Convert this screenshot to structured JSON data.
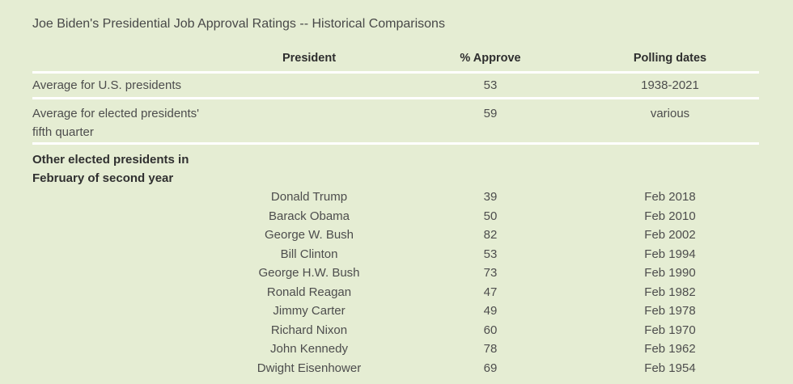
{
  "title": "Joe Biden's Presidential Job Approval Ratings -- Historical Comparisons",
  "colors": {
    "background": "#e5edd3",
    "separator": "#ffffff",
    "body_text": "#4d4d4d",
    "heading_text": "#2e2e2e"
  },
  "table": {
    "headers": {
      "president": "President",
      "approve": "% Approve",
      "dates": "Polling dates"
    },
    "summary_rows": [
      {
        "label": "Average for U.S. presidents",
        "approve": "53",
        "dates": "1938-2021"
      },
      {
        "label": "Average for elected presidents'\nfifth quarter",
        "approve": "59",
        "dates": "various"
      }
    ],
    "group_header": "Other elected presidents in\nFebruary of second year",
    "rows": [
      {
        "president": "Donald Trump",
        "approve": "39",
        "dates": "Feb 2018"
      },
      {
        "president": "Barack Obama",
        "approve": "50",
        "dates": "Feb 2010"
      },
      {
        "president": "George W. Bush",
        "approve": "82",
        "dates": "Feb 2002"
      },
      {
        "president": "Bill Clinton",
        "approve": "53",
        "dates": "Feb 1994"
      },
      {
        "president": "George H.W. Bush",
        "approve": "73",
        "dates": "Feb 1990"
      },
      {
        "president": "Ronald Reagan",
        "approve": "47",
        "dates": "Feb 1982"
      },
      {
        "president": "Jimmy Carter",
        "approve": "49",
        "dates": "Feb 1978"
      },
      {
        "president": "Richard Nixon",
        "approve": "60",
        "dates": "Feb 1970"
      },
      {
        "president": "John Kennedy",
        "approve": "78",
        "dates": "Feb 1962"
      },
      {
        "president": "Dwight Eisenhower",
        "approve": "69",
        "dates": "Feb 1954"
      }
    ]
  },
  "chart_data": {
    "type": "table",
    "title": "Joe Biden's Presidential Job Approval Ratings -- Historical Comparisons",
    "columns": [
      "President",
      "% Approve",
      "Polling dates"
    ],
    "summary": [
      {
        "label": "Average for U.S. presidents",
        "approve": 53,
        "polling_dates": "1938-2021"
      },
      {
        "label": "Average for elected presidents' fifth quarter",
        "approve": 59,
        "polling_dates": "various"
      }
    ],
    "group": "Other elected presidents in February of second year",
    "records": [
      {
        "president": "Donald Trump",
        "approve": 39,
        "polling_dates": "Feb 2018"
      },
      {
        "president": "Barack Obama",
        "approve": 50,
        "polling_dates": "Feb 2010"
      },
      {
        "president": "George W. Bush",
        "approve": 82,
        "polling_dates": "Feb 2002"
      },
      {
        "president": "Bill Clinton",
        "approve": 53,
        "polling_dates": "Feb 1994"
      },
      {
        "president": "George H.W. Bush",
        "approve": 73,
        "polling_dates": "Feb 1990"
      },
      {
        "president": "Ronald Reagan",
        "approve": 47,
        "polling_dates": "Feb 1982"
      },
      {
        "president": "Jimmy Carter",
        "approve": 49,
        "polling_dates": "Feb 1978"
      },
      {
        "president": "Richard Nixon",
        "approve": 60,
        "polling_dates": "Feb 1970"
      },
      {
        "president": "John Kennedy",
        "approve": 78,
        "polling_dates": "Feb 1962"
      },
      {
        "president": "Dwight Eisenhower",
        "approve": 69,
        "polling_dates": "Feb 1954"
      }
    ]
  }
}
